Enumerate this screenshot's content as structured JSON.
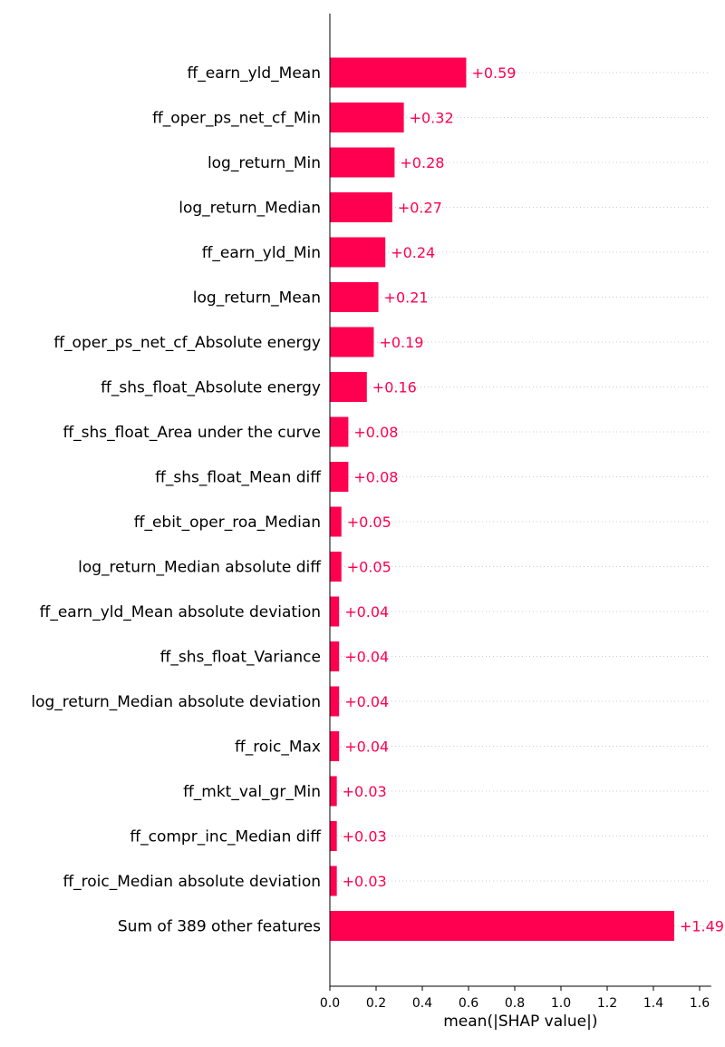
{
  "chart_data": {
    "type": "bar",
    "orientation": "horizontal",
    "categories": [
      "ff_earn_yld_Mean",
      "ff_oper_ps_net_cf_Min",
      "log_return_Min",
      "log_return_Median",
      "ff_earn_yld_Min",
      "log_return_Mean",
      "ff_oper_ps_net_cf_Absolute energy",
      "ff_shs_float_Absolute energy",
      "ff_shs_float_Area under the curve",
      "ff_shs_float_Mean diff",
      "ff_ebit_oper_roa_Median",
      "log_return_Median absolute diff",
      "ff_earn_yld_Mean absolute deviation",
      "ff_shs_float_Variance",
      "log_return_Median absolute deviation",
      "ff_roic_Max",
      "ff_mkt_val_gr_Min",
      "ff_compr_inc_Median diff",
      "ff_roic_Median absolute deviation",
      "Sum of 389 other features"
    ],
    "values": [
      0.59,
      0.32,
      0.28,
      0.27,
      0.24,
      0.21,
      0.19,
      0.16,
      0.08,
      0.08,
      0.05,
      0.05,
      0.04,
      0.04,
      0.04,
      0.04,
      0.03,
      0.03,
      0.03,
      1.49
    ],
    "value_labels": [
      "+0.59",
      "+0.32",
      "+0.28",
      "+0.27",
      "+0.24",
      "+0.21",
      "+0.19",
      "+0.16",
      "+0.08",
      "+0.08",
      "+0.05",
      "+0.05",
      "+0.04",
      "+0.04",
      "+0.04",
      "+0.04",
      "+0.03",
      "+0.03",
      "+0.03",
      "+1.49"
    ],
    "xlabel": "mean(|SHAP value|)",
    "ylabel": "",
    "title": "",
    "xlim": [
      0,
      1.65
    ],
    "xticks": [
      0.0,
      0.2,
      0.4,
      0.6,
      0.8,
      1.0,
      1.2,
      1.4,
      1.6
    ],
    "xtick_labels": [
      "0.0",
      "0.2",
      "0.4",
      "0.6",
      "0.8",
      "1.0",
      "1.2",
      "1.4",
      "1.6"
    ],
    "grid": "dotted row guides",
    "legend": "none",
    "colors": {
      "bar": "#ff0051",
      "value_text": "#ff0051",
      "axis": "#000000",
      "guide": "#cccccc"
    }
  }
}
